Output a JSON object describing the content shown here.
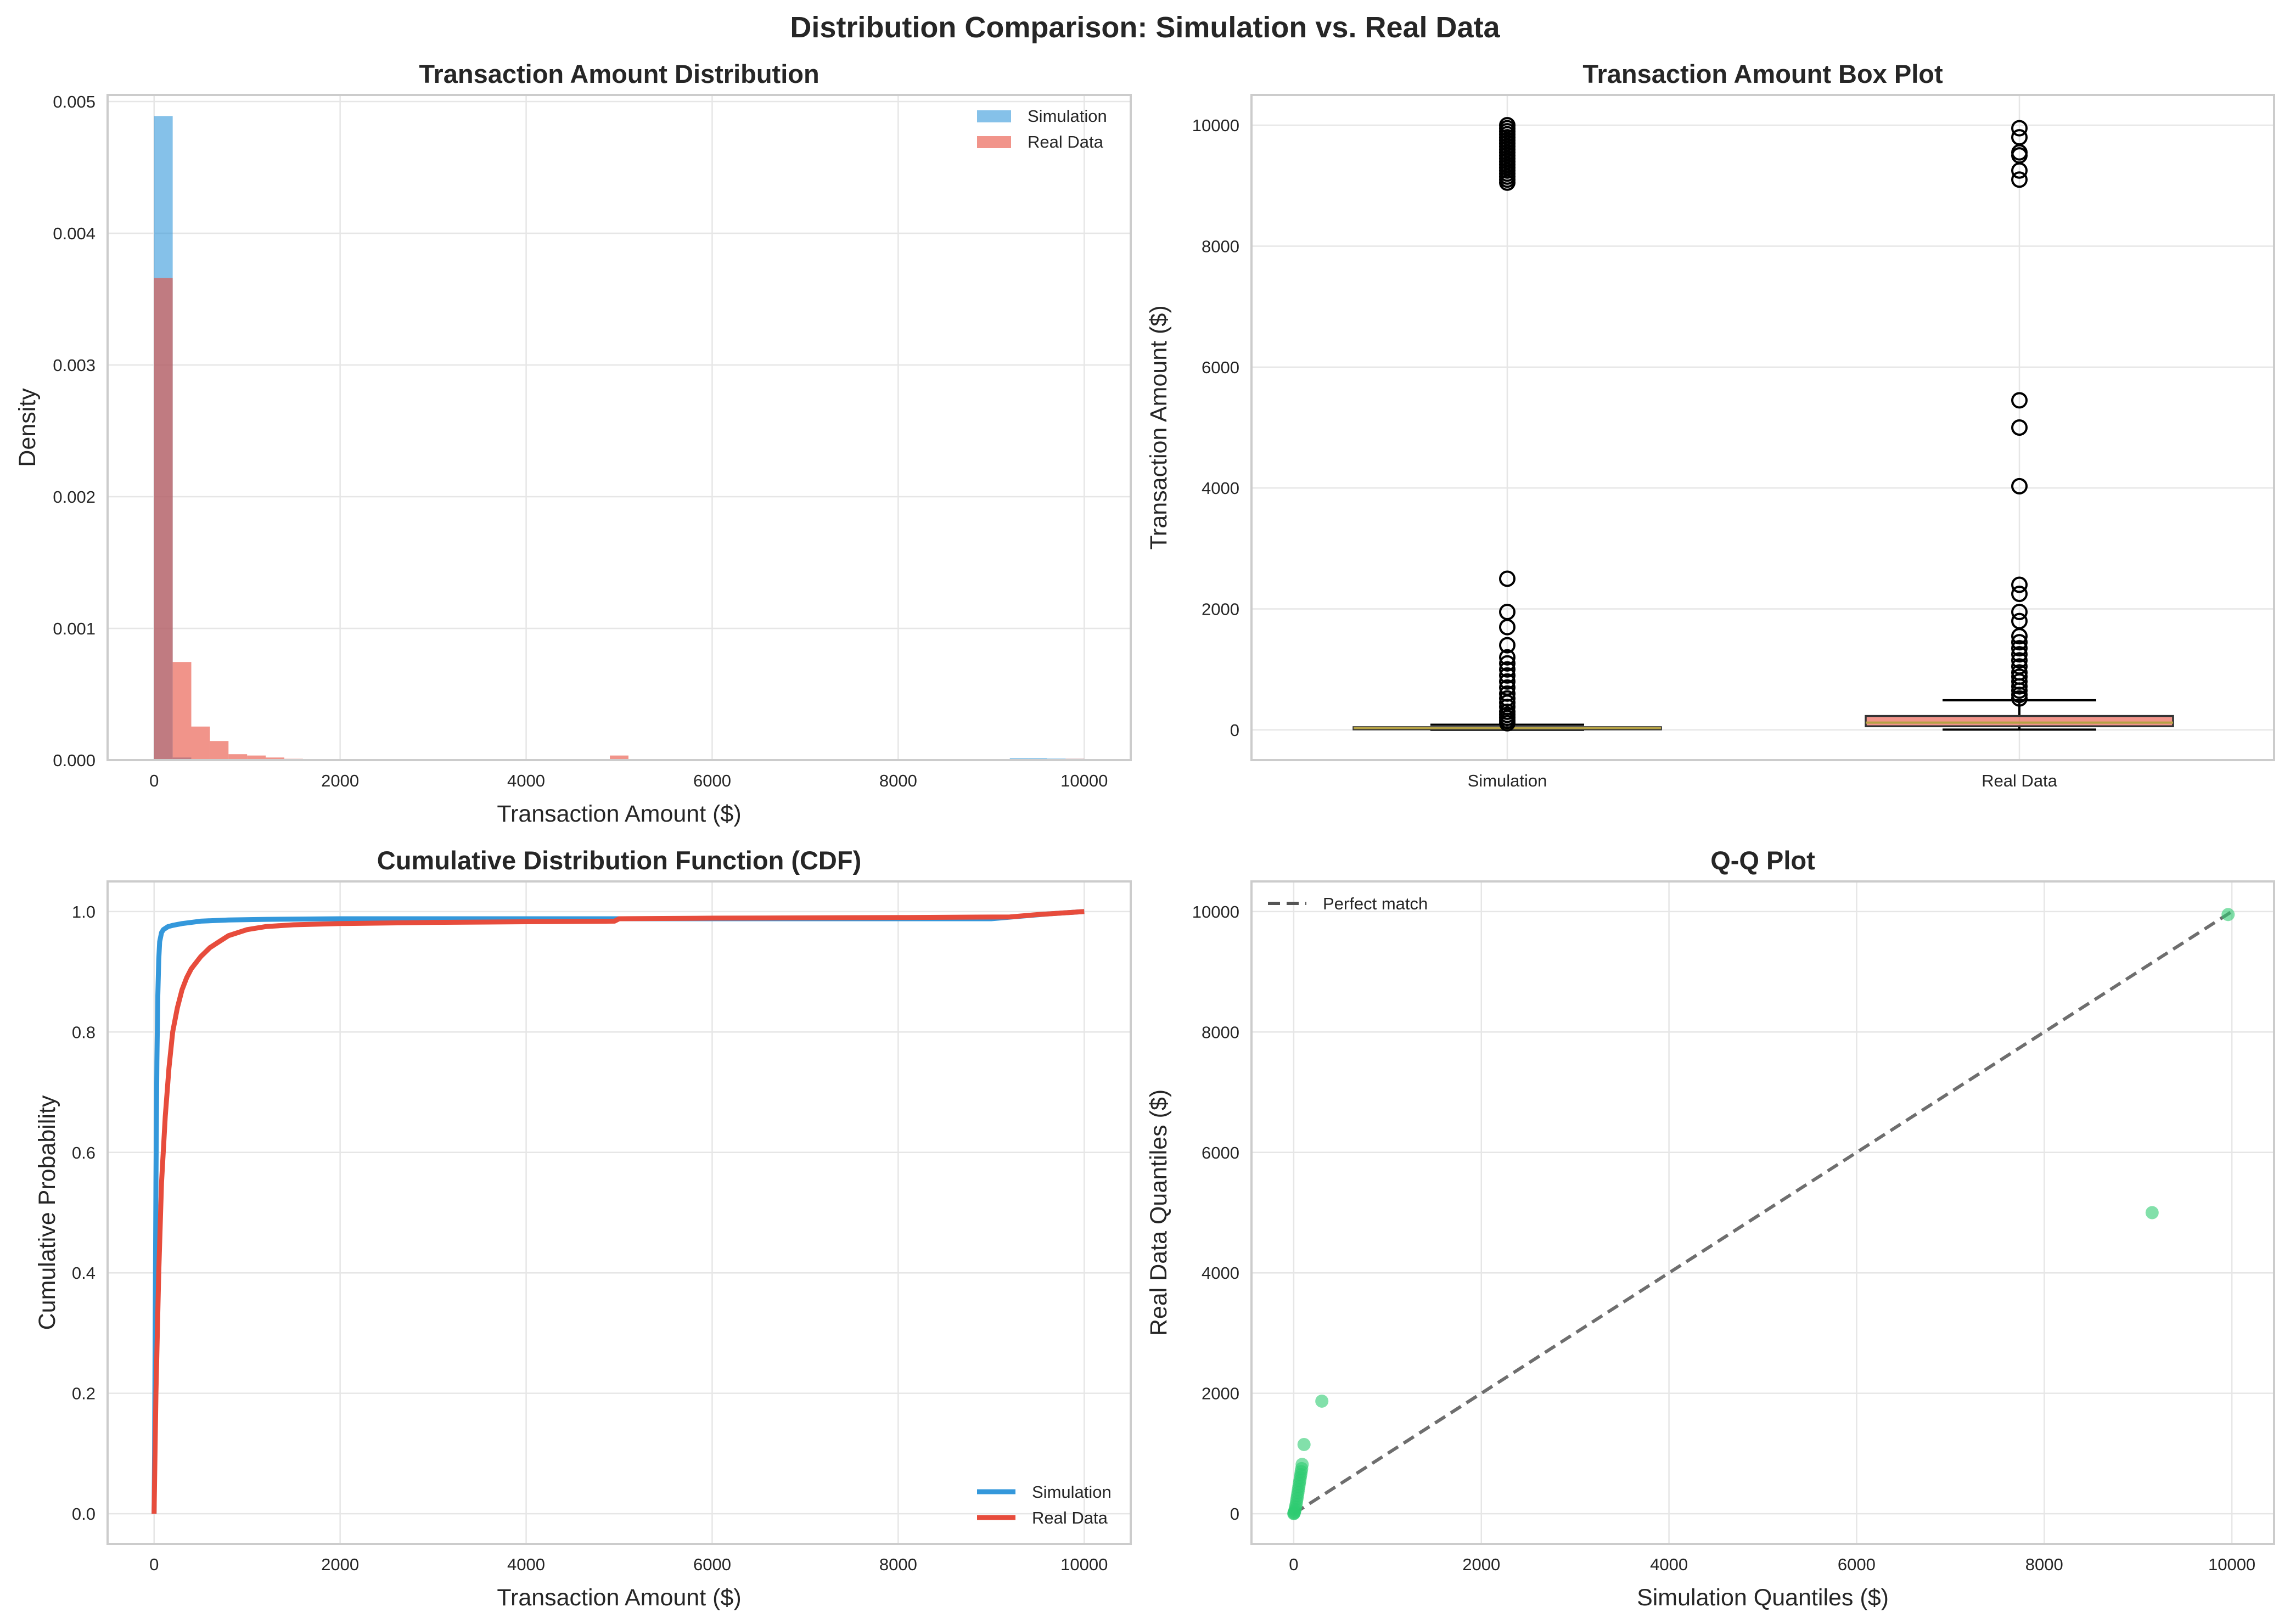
{
  "figure_title": "Distribution Comparison: Simulation vs. Real Data",
  "colors": {
    "simulation": "#3498db",
    "real": "#e74c3c",
    "qq": "#2ecc71",
    "diagonal": "#555555",
    "median": "#b5a245"
  },
  "chart_data": [
    {
      "id": "hist",
      "type": "bar",
      "subtype": "histogram-density",
      "title": "Transaction Amount Distribution",
      "xlabel": "Transaction Amount ($)",
      "ylabel": "Density",
      "xlim": [
        -500,
        10500
      ],
      "ylim": [
        0,
        0.00505
      ],
      "xticks": [
        0,
        2000,
        4000,
        6000,
        8000,
        10000
      ],
      "yticks": [
        0.0,
        0.001,
        0.002,
        0.003,
        0.004,
        0.005
      ],
      "ytick_labels": [
        "0.000",
        "0.001",
        "0.002",
        "0.003",
        "0.004",
        "0.005"
      ],
      "legend": [
        "Simulation",
        "Real Data"
      ],
      "legend_position": "top-right",
      "series": [
        {
          "name": "Simulation",
          "bins": [
            [
              0,
              200,
              0.00489
            ],
            [
              200,
              400,
              2e-05
            ],
            [
              9200,
              9400,
              1.5e-05
            ],
            [
              9400,
              9600,
              1.5e-05
            ],
            [
              9600,
              9800,
              1.2e-05
            ],
            [
              9800,
              10000,
              1e-05
            ]
          ]
        },
        {
          "name": "Real Data",
          "bins": [
            [
              0,
              200,
              0.00366
            ],
            [
              200,
              400,
              0.000745
            ],
            [
              400,
              600,
              0.000255
            ],
            [
              600,
              800,
              0.000145
            ],
            [
              800,
              1000,
              4.5e-05
            ],
            [
              1000,
              1200,
              3.5e-05
            ],
            [
              1200,
              1400,
              2e-05
            ],
            [
              1400,
              1600,
              1e-05
            ],
            [
              1600,
              1800,
              5e-06
            ],
            [
              1800,
              2000,
              5e-06
            ],
            [
              2200,
              2400,
              4e-06
            ],
            [
              3900,
              4100,
              4e-06
            ],
            [
              4900,
              5100,
              3.5e-05
            ],
            [
              5300,
              5500,
              4e-06
            ],
            [
              9100,
              9300,
              8e-06
            ],
            [
              9500,
              9700,
              8e-06
            ],
            [
              9800,
              10000,
              1e-05
            ]
          ]
        }
      ]
    },
    {
      "id": "box",
      "type": "box",
      "title": "Transaction Amount Box Plot",
      "xlabel": "",
      "ylabel": "Transaction Amount ($)",
      "ylim": [
        -500,
        10500
      ],
      "yticks": [
        0,
        2000,
        4000,
        6000,
        8000,
        10000
      ],
      "categories": [
        "Simulation",
        "Real Data"
      ],
      "boxes": [
        {
          "name": "Simulation",
          "whisker_low": 1,
          "q1": 15,
          "median": 30,
          "q3": 45,
          "whisker_high": 85,
          "outliers": [
            110,
            150,
            200,
            250,
            300,
            380,
            450,
            520,
            600,
            700,
            800,
            900,
            1000,
            1100,
            1200,
            1400,
            1700,
            1950,
            2500,
            9050,
            9100,
            9150,
            9200,
            9250,
            9300,
            9350,
            9400,
            9450,
            9500,
            9550,
            9600,
            9650,
            9700,
            9750,
            9800,
            9850,
            9900,
            9950,
            10000
          ]
        },
        {
          "name": "Real Data",
          "whisker_low": 5,
          "q1": 60,
          "median": 120,
          "q3": 230,
          "whisker_high": 490,
          "outliers": [
            520,
            580,
            650,
            720,
            800,
            880,
            950,
            1050,
            1150,
            1250,
            1350,
            1450,
            1550,
            1800,
            1950,
            2250,
            2400,
            4030,
            5000,
            5450,
            9100,
            9250,
            9500,
            9550,
            9800,
            9950
          ]
        }
      ]
    },
    {
      "id": "cdf",
      "type": "line",
      "title": "Cumulative Distribution Function (CDF)",
      "xlabel": "Transaction Amount ($)",
      "ylabel": "Cumulative Probability",
      "xlim": [
        -500,
        10500
      ],
      "ylim": [
        -0.05,
        1.05
      ],
      "xticks": [
        0,
        2000,
        4000,
        6000,
        8000,
        10000
      ],
      "yticks": [
        0.0,
        0.2,
        0.4,
        0.6,
        0.8,
        1.0
      ],
      "ytick_labels": [
        "0.0",
        "0.2",
        "0.4",
        "0.6",
        "0.8",
        "1.0"
      ],
      "legend": [
        "Simulation",
        "Real Data"
      ],
      "legend_position": "bottom-right",
      "series": [
        {
          "name": "Simulation",
          "x": [
            0,
            5,
            10,
            20,
            30,
            40,
            50,
            60,
            80,
            100,
            150,
            200,
            300,
            500,
            800,
            1200,
            2000,
            3000,
            5000,
            8000,
            9000,
            9300,
            9600,
            10000
          ],
          "y": [
            0.0,
            0.1,
            0.25,
            0.55,
            0.75,
            0.86,
            0.92,
            0.95,
            0.965,
            0.97,
            0.975,
            0.977,
            0.98,
            0.984,
            0.986,
            0.987,
            0.988,
            0.988,
            0.988,
            0.988,
            0.988,
            0.992,
            0.996,
            1.0
          ]
        },
        {
          "name": "Real Data",
          "x": [
            0,
            20,
            50,
            80,
            120,
            160,
            200,
            250,
            300,
            350,
            400,
            500,
            600,
            700,
            800,
            900,
            1000,
            1200,
            1500,
            2000,
            3000,
            4000,
            4950,
            5000,
            6000,
            8000,
            9200,
            9500,
            10000
          ],
          "y": [
            0.0,
            0.2,
            0.4,
            0.55,
            0.66,
            0.74,
            0.8,
            0.84,
            0.87,
            0.89,
            0.905,
            0.925,
            0.94,
            0.95,
            0.96,
            0.965,
            0.97,
            0.975,
            0.978,
            0.98,
            0.982,
            0.983,
            0.984,
            0.988,
            0.989,
            0.99,
            0.991,
            0.995,
            1.0
          ]
        }
      ]
    },
    {
      "id": "qq",
      "type": "scatter",
      "title": "Q-Q Plot",
      "xlabel": "Simulation Quantiles ($)",
      "ylabel": "Real Data Quantiles ($)",
      "xlim": [
        -450,
        10450
      ],
      "ylim": [
        -500,
        10500
      ],
      "xticks": [
        0,
        2000,
        4000,
        6000,
        8000,
        10000
      ],
      "yticks": [
        0,
        2000,
        4000,
        6000,
        8000,
        10000
      ],
      "legend": [
        "Perfect match"
      ],
      "legend_position": "top-left",
      "reference_line": {
        "from": [
          0,
          0
        ],
        "to": [
          10000,
          10000
        ]
      },
      "points": [
        [
          1,
          2
        ],
        [
          3,
          8
        ],
        [
          6,
          20
        ],
        [
          10,
          40
        ],
        [
          15,
          70
        ],
        [
          20,
          110
        ],
        [
          25,
          150
        ],
        [
          30,
          200
        ],
        [
          35,
          250
        ],
        [
          40,
          300
        ],
        [
          45,
          350
        ],
        [
          50,
          400
        ],
        [
          55,
          450
        ],
        [
          60,
          500
        ],
        [
          65,
          550
        ],
        [
          70,
          600
        ],
        [
          75,
          650
        ],
        [
          80,
          700
        ],
        [
          85,
          750
        ],
        [
          90,
          820
        ],
        [
          110,
          1150
        ],
        [
          300,
          1870
        ],
        [
          9150,
          5000
        ],
        [
          9960,
          9950
        ]
      ]
    }
  ]
}
